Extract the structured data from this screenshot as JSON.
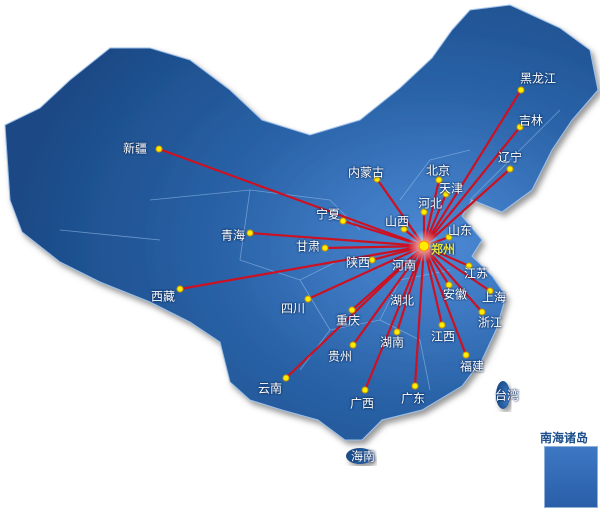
{
  "map": {
    "hub": "郑州",
    "line_color": "#cc1122",
    "dot_color": "#ffee00",
    "land_color": "#2a63a8",
    "provinces": [
      "黑龙江",
      "吉林",
      "辽宁",
      "内蒙古",
      "北京",
      "天津",
      "河北",
      "宁夏",
      "山西",
      "山东",
      "甘肃",
      "陕西",
      "江苏",
      "安徽",
      "上海",
      "浙江",
      "四川",
      "重庆",
      "湖南",
      "江西",
      "贵州",
      "福建",
      "云南",
      "广西",
      "广东",
      "新疆",
      "青海",
      "西藏"
    ],
    "unconnected_labels": [
      "河南",
      "湖北",
      "台湾",
      "海南"
    ],
    "inset_title": "南海诸岛"
  }
}
